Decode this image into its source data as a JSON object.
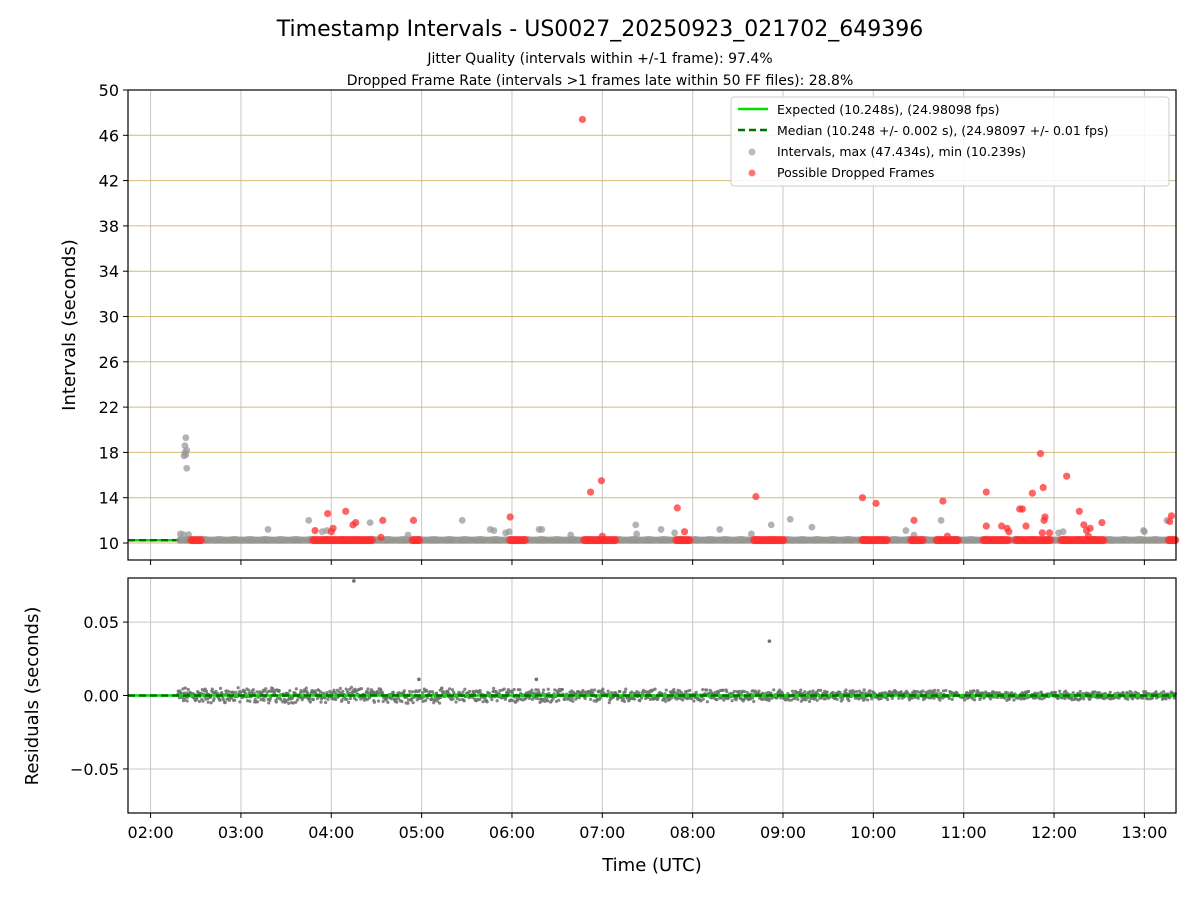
{
  "chart_data": [
    {
      "panel": "intervals",
      "type": "scatter",
      "title": "Timestamp Intervals - US0027_20250923_021702_649396",
      "subtitles": [
        "Jitter Quality (intervals within +/-1 frame): 97.4%",
        "Dropped Frame Rate (intervals >1 frames late within 50 FF files): 28.8%"
      ],
      "ylabel": "Intervals (seconds)",
      "xlabel": "Time (UTC)",
      "xlim_hours": [
        1.75,
        13.35
      ],
      "ylim": [
        8.5,
        50
      ],
      "yticks": [
        10,
        14,
        18,
        22,
        26,
        30,
        34,
        38,
        42,
        46,
        50
      ],
      "ytick_labels": [
        "10",
        "14",
        "18",
        "22",
        "26",
        "30",
        "34",
        "38",
        "42",
        "46",
        "50"
      ],
      "xticks_hours": [
        2,
        3,
        4,
        5,
        6,
        7,
        8,
        9,
        10,
        11,
        12,
        13
      ],
      "grid": true,
      "legend_position": "top-right",
      "legend": [
        {
          "label": "Expected (10.248s), (24.98098 fps)",
          "kind": "line",
          "color": "#00e000"
        },
        {
          "label": "Median (10.248 +/- 0.002 s), (24.98097 +/- 0.01 fps)",
          "kind": "dashed",
          "color": "#007000"
        },
        {
          "label": "Intervals, max (47.434s), min (10.239s)",
          "kind": "marker",
          "color": "#999999"
        },
        {
          "label": "Possible Dropped Frames",
          "kind": "marker",
          "color": "#ff3030"
        }
      ],
      "expected_interval": 10.248,
      "median_interval": 10.248,
      "series": [
        {
          "name": "Intervals",
          "color": "#999999",
          "points": [
            [
              2.33,
              10.8
            ],
            [
              2.36,
              10.75
            ],
            [
              2.37,
              17.7
            ],
            [
              2.38,
              18.0
            ],
            [
              2.39,
              17.8
            ],
            [
              2.38,
              18.6
            ],
            [
              2.39,
              19.3
            ],
            [
              2.4,
              18.2
            ],
            [
              2.4,
              16.6
            ],
            [
              2.42,
              10.75
            ],
            [
              3.3,
              11.2
            ],
            [
              3.75,
              12.0
            ],
            [
              3.9,
              11.0
            ],
            [
              3.95,
              11.1
            ],
            [
              4.43,
              11.8
            ],
            [
              4.85,
              10.7
            ],
            [
              5.45,
              12.0
            ],
            [
              5.76,
              11.2
            ],
            [
              5.8,
              11.1
            ],
            [
              5.93,
              10.9
            ],
            [
              5.97,
              11.0
            ],
            [
              6.3,
              11.2
            ],
            [
              6.33,
              11.2
            ],
            [
              6.65,
              10.7
            ],
            [
              7.37,
              11.6
            ],
            [
              7.38,
              10.8
            ],
            [
              7.65,
              11.2
            ],
            [
              7.8,
              10.9
            ],
            [
              8.3,
              11.2
            ],
            [
              8.65,
              10.8
            ],
            [
              8.87,
              11.6
            ],
            [
              9.08,
              12.1
            ],
            [
              9.32,
              11.4
            ],
            [
              10.36,
              11.1
            ],
            [
              10.45,
              10.7
            ],
            [
              10.75,
              12.0
            ],
            [
              12.05,
              10.9
            ],
            [
              12.1,
              11.0
            ],
            [
              12.99,
              11.1
            ],
            [
              13.0,
              11.0
            ],
            [
              13.25,
              12.0
            ]
          ]
        },
        {
          "name": "Possible Dropped Frames",
          "color": "#ff3030",
          "points": [
            [
              3.82,
              11.1
            ],
            [
              3.96,
              12.6
            ],
            [
              4.0,
              11.0
            ],
            [
              4.02,
              11.3
            ],
            [
              4.16,
              12.8
            ],
            [
              4.24,
              11.6
            ],
            [
              4.27,
              11.8
            ],
            [
              4.57,
              12.0
            ],
            [
              4.55,
              10.5
            ],
            [
              4.91,
              12.0
            ],
            [
              5.98,
              12.3
            ],
            [
              6.78,
              47.4
            ],
            [
              6.87,
              14.5
            ],
            [
              6.99,
              15.5
            ],
            [
              7.0,
              10.6
            ],
            [
              7.83,
              13.1
            ],
            [
              7.91,
              11.0
            ],
            [
              8.7,
              14.1
            ],
            [
              9.88,
              14.0
            ],
            [
              10.03,
              13.5
            ],
            [
              10.45,
              12.0
            ],
            [
              10.77,
              13.7
            ],
            [
              10.82,
              10.6
            ],
            [
              11.25,
              14.5
            ],
            [
              11.25,
              11.5
            ],
            [
              11.42,
              11.5
            ],
            [
              11.48,
              11.3
            ],
            [
              11.5,
              11.0
            ],
            [
              11.62,
              13.0
            ],
            [
              11.65,
              13.0
            ],
            [
              11.69,
              11.5
            ],
            [
              11.76,
              14.4
            ],
            [
              11.85,
              17.9
            ],
            [
              11.88,
              14.9
            ],
            [
              11.89,
              12.0
            ],
            [
              11.9,
              12.3
            ],
            [
              11.87,
              10.9
            ],
            [
              11.95,
              10.9
            ],
            [
              12.14,
              15.9
            ],
            [
              12.28,
              12.8
            ],
            [
              12.33,
              11.6
            ],
            [
              12.36,
              11.1
            ],
            [
              12.4,
              11.3
            ],
            [
              12.38,
              10.6
            ],
            [
              12.53,
              11.8
            ],
            [
              13.3,
              12.4
            ],
            [
              13.28,
              11.9
            ]
          ],
          "baseline_clusters": [
            [
              2.45,
              2.56
            ],
            [
              3.8,
              4.45
            ],
            [
              4.9,
              4.98
            ],
            [
              5.98,
              6.15
            ],
            [
              6.8,
              7.15
            ],
            [
              7.82,
              7.98
            ],
            [
              8.68,
              9.02
            ],
            [
              9.88,
              10.15
            ],
            [
              10.42,
              10.55
            ],
            [
              10.7,
              10.95
            ],
            [
              11.22,
              11.5
            ],
            [
              11.58,
              11.97
            ],
            [
              12.08,
              12.55
            ],
            [
              13.27,
              13.35
            ]
          ],
          "baseline_value": 10.25
        }
      ]
    },
    {
      "panel": "residuals",
      "type": "scatter",
      "ylabel": "Residuals (seconds)",
      "xlabel": "Time (UTC)",
      "xlim_hours": [
        1.75,
        13.35
      ],
      "ylim": [
        -0.08,
        0.08
      ],
      "yticks": [
        0.05,
        0.0,
        -0.05
      ],
      "ytick_labels": [
        "0.05",
        "0.00",
        "−0.05"
      ],
      "xticks_hours": [
        2,
        3,
        4,
        5,
        6,
        7,
        8,
        9,
        10,
        11,
        12,
        13
      ],
      "xtick_labels": [
        "02:00",
        "03:00",
        "04:00",
        "05:00",
        "06:00",
        "07:00",
        "08:00",
        "09:00",
        "10:00",
        "11:00",
        "12:00",
        "13:00"
      ],
      "grid": true,
      "zero_line": {
        "expected_color": "#00e000",
        "median_color": "#007000"
      },
      "series": [
        {
          "name": "Residuals",
          "color": "#707070",
          "x_range_hours": [
            2.3,
            13.35
          ],
          "spread_start_seconds": 0.0045,
          "spread_end_seconds": 0.0022,
          "outliers": [
            [
              4.25,
              0.078
            ],
            [
              8.85,
              0.037
            ],
            [
              6.27,
              0.011
            ],
            [
              4.97,
              0.011
            ]
          ]
        }
      ]
    }
  ]
}
